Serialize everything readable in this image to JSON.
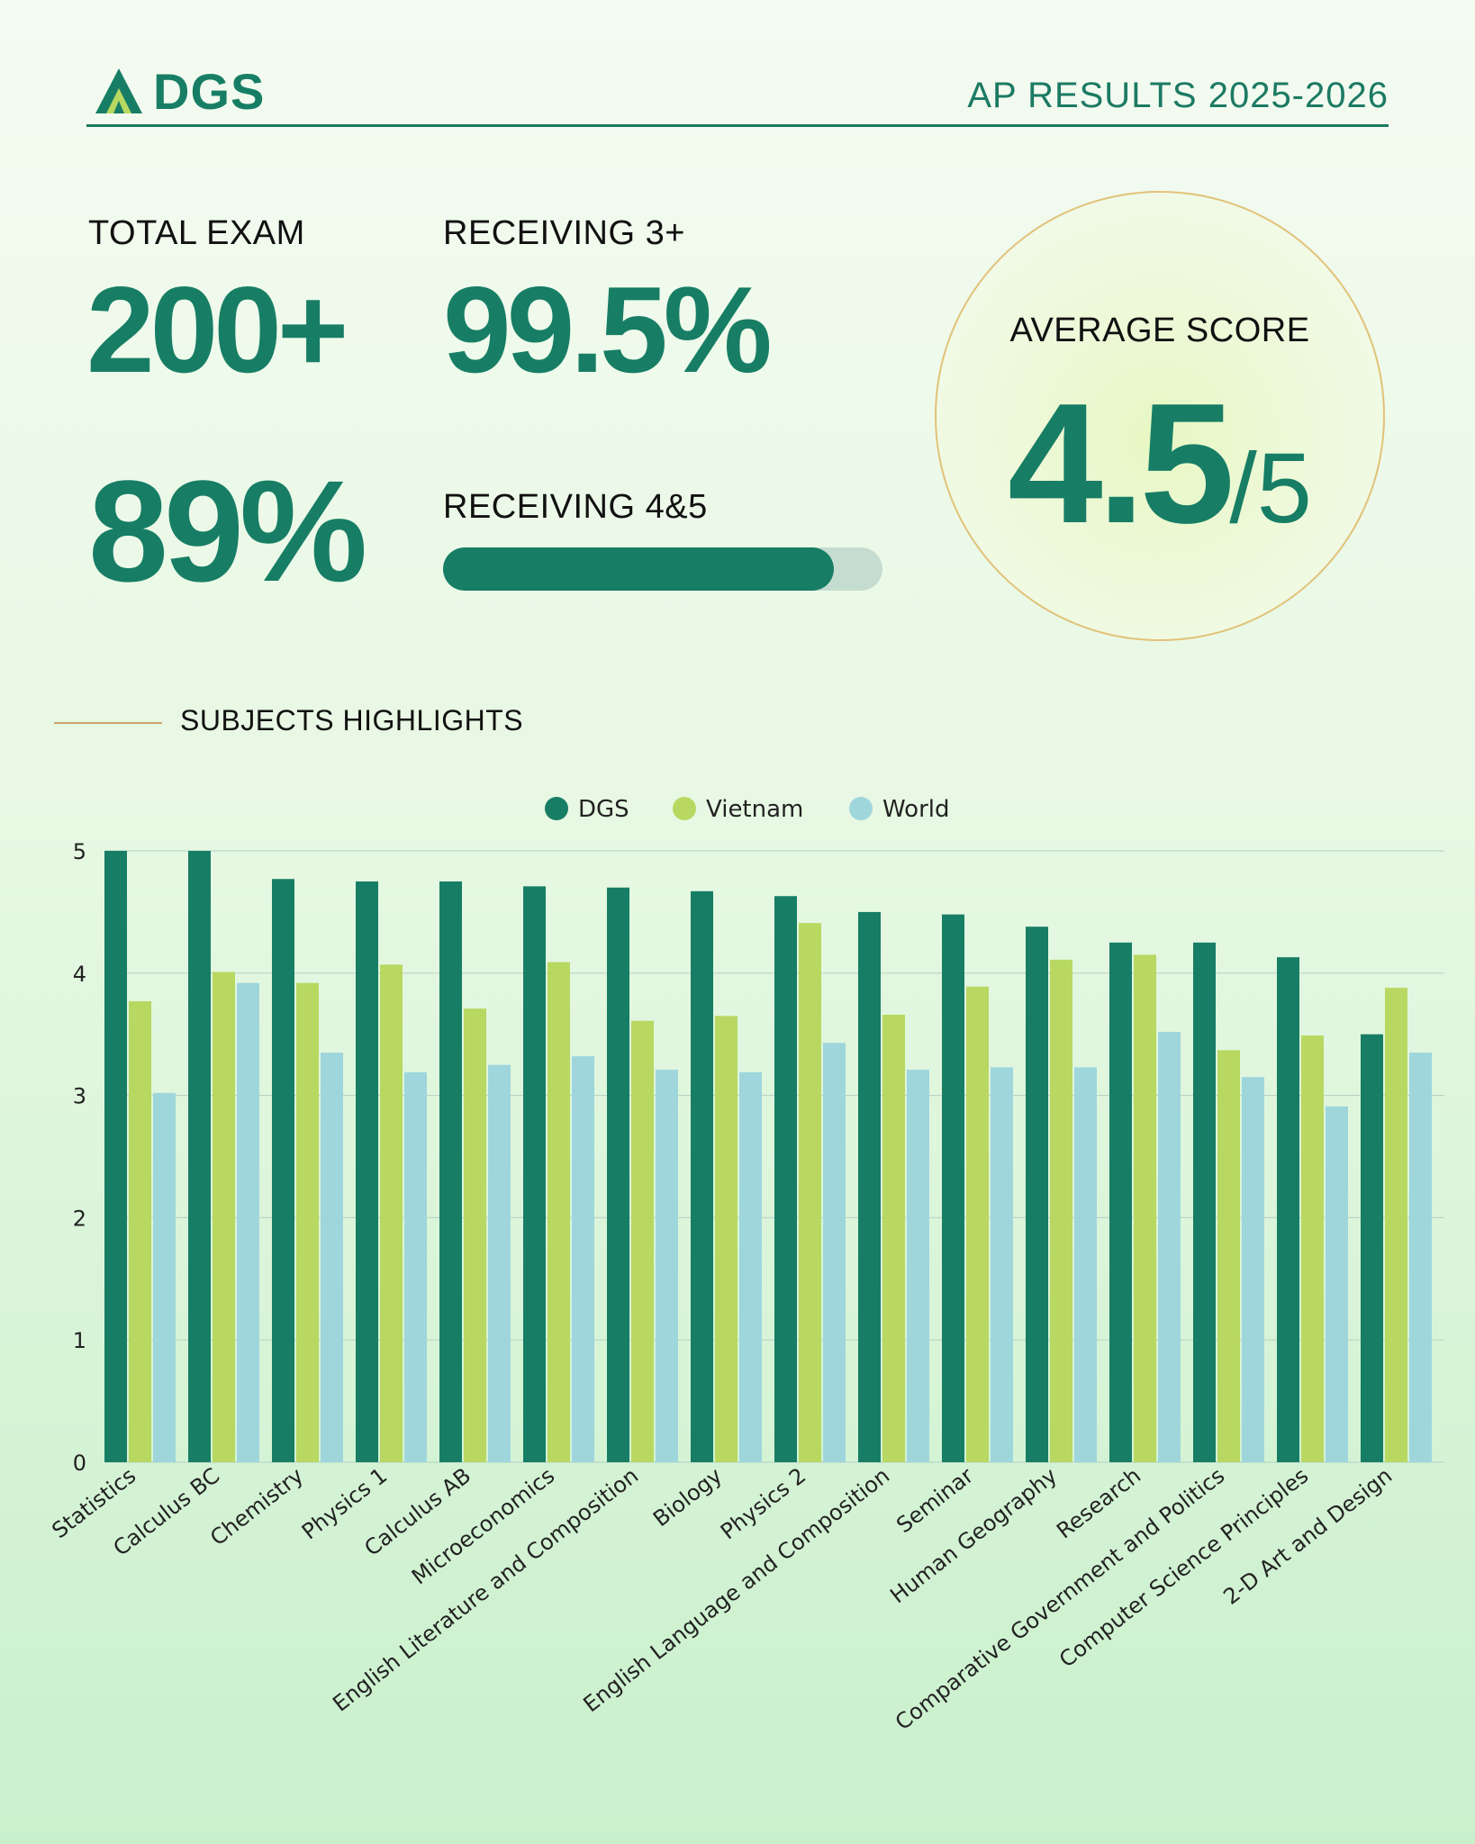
{
  "header": {
    "logo_text": "DGS",
    "title": "AP RESULTS 2025-2026"
  },
  "stats": {
    "total_exam_label": "TOTAL EXAM",
    "total_exam_value": "200+",
    "receiving3_label": "RECEIVING 3+",
    "receiving3_value": "99.5%",
    "receiving45_value": "89%",
    "receiving45_label": "RECEIVING 4&5",
    "receiving45_progress": 0.89,
    "avg_label": "AVERAGE SCORE",
    "avg_value": "4.5",
    "avg_out_of": "/5"
  },
  "section": {
    "title": "SUBJECTS HIGHLIGHTS"
  },
  "colors": {
    "dgs": "#177e65",
    "vietnam": "#b8d862",
    "world": "#9fd6dc",
    "accent": "#177e65",
    "gold": "#c9a36a"
  },
  "chart_data": {
    "type": "bar",
    "categories": [
      "Statistics",
      "Calculus BC",
      "Chemistry",
      "Physics 1",
      "Calculus AB",
      "Microeconomics",
      "English Literature and Composition",
      "Biology",
      "Physics 2",
      "English Language and Composition",
      "Seminar",
      "Human Geography",
      "Research",
      "Comparative Government and Politics",
      "Computer Science Principles",
      "2-D Art and Design"
    ],
    "series": [
      {
        "name": "DGS",
        "values": [
          5.0,
          5.0,
          4.77,
          4.75,
          4.75,
          4.71,
          4.7,
          4.67,
          4.63,
          4.5,
          4.48,
          4.38,
          4.25,
          4.25,
          4.13,
          3.5
        ]
      },
      {
        "name": "Vietnam",
        "values": [
          3.77,
          4.01,
          3.92,
          4.07,
          3.71,
          4.09,
          3.61,
          3.65,
          4.41,
          3.66,
          3.89,
          4.11,
          4.15,
          3.37,
          3.49,
          3.88
        ]
      },
      {
        "name": "World",
        "values": [
          3.02,
          3.92,
          3.35,
          3.19,
          3.25,
          3.32,
          3.21,
          3.19,
          3.43,
          3.21,
          3.23,
          3.23,
          3.52,
          3.15,
          2.91,
          3.35
        ]
      }
    ],
    "ylim": [
      0,
      5
    ],
    "yticks": [
      0,
      1,
      2,
      3,
      4,
      5
    ],
    "grid": true,
    "legend": "top-center"
  }
}
